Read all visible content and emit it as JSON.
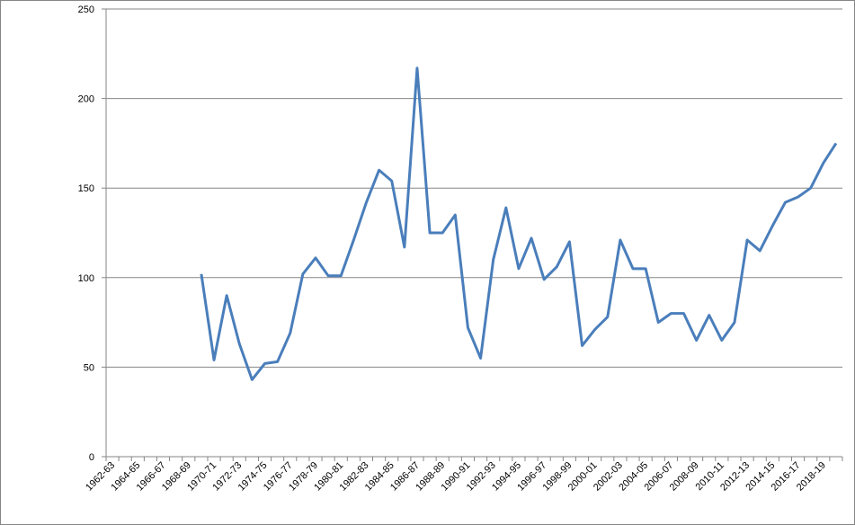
{
  "chart_data": {
    "type": "line",
    "categories": [
      "1962-63",
      null,
      "1964-65",
      null,
      "1966-67",
      null,
      "1968-69",
      null,
      "1970-71",
      null,
      "1972-73",
      null,
      "1974-75",
      null,
      "1976-77",
      null,
      "1978-79",
      null,
      "1980-81",
      null,
      "1982-83",
      null,
      "1984-85",
      null,
      "1986-87",
      null,
      "1988-89",
      null,
      "1990-91",
      null,
      "1992-93",
      null,
      "1994-95",
      null,
      "1996-97",
      null,
      "1998-99",
      null,
      "2000-01",
      null,
      "2002-03",
      null,
      "2004-05",
      null,
      "2006-07",
      null,
      "2008-09",
      null,
      "2010-11",
      null,
      "2012-13",
      null,
      "2014-15",
      null,
      "2016-17",
      null,
      "2018-19",
      null
    ],
    "values": [
      null,
      null,
      null,
      null,
      null,
      null,
      null,
      102,
      54,
      90,
      63,
      43,
      52,
      53,
      69,
      102,
      111,
      101,
      101,
      121,
      142,
      160,
      154,
      117,
      217,
      125,
      125,
      135,
      72,
      55,
      110,
      139,
      105,
      122,
      99,
      106,
      120,
      62,
      71,
      78,
      121,
      105,
      105,
      75,
      80,
      80,
      65,
      79,
      65,
      75,
      121,
      115,
      129,
      142,
      145,
      150,
      164,
      175
    ],
    "color": "#4a7ebb",
    "ylim": [
      0,
      250
    ],
    "yticks": [
      0,
      50,
      100,
      150,
      200,
      250
    ],
    "grid": true
  }
}
